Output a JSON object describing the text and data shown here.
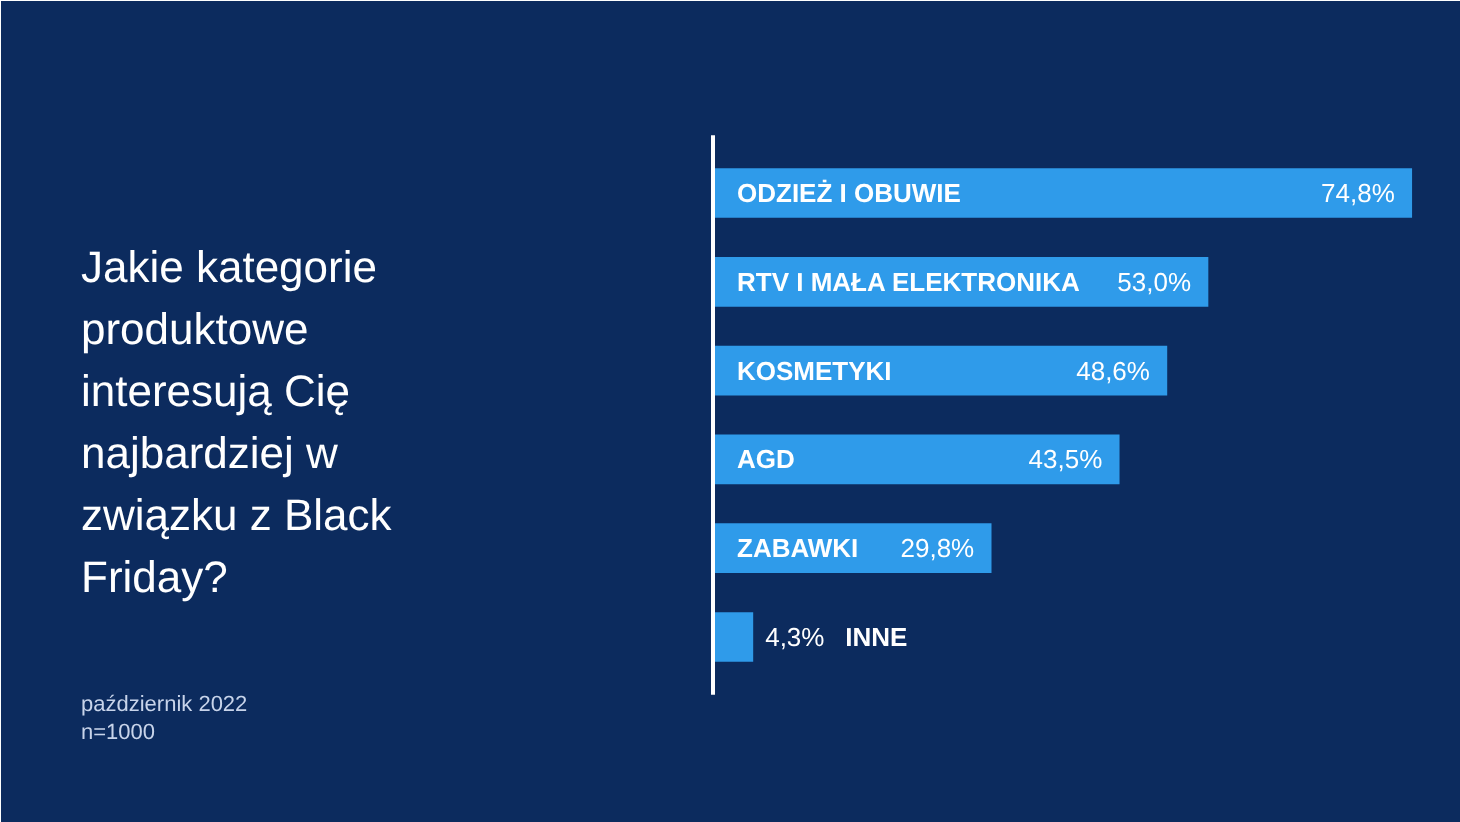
{
  "chart_data": {
    "type": "bar",
    "orientation": "horizontal",
    "title": "Jakie kategorie produktowe interesują Cię najbardziej w związku z Black Friday?",
    "categories": [
      "ODZIEŻ I OBUWIE",
      "RTV I MAŁA ELEKTRONIKA",
      "KOSMETYKI",
      "AGD",
      "ZABAWKI",
      "INNE"
    ],
    "values": [
      74.8,
      53.0,
      48.6,
      43.5,
      29.8,
      4.3
    ],
    "value_labels": [
      "74,8%",
      "53,0%",
      "48,6%",
      "43,5%",
      "29,8%",
      "4,3%"
    ],
    "color": "#2f9bea",
    "annotations": [
      "październik 2022",
      "n=1000"
    ]
  }
}
